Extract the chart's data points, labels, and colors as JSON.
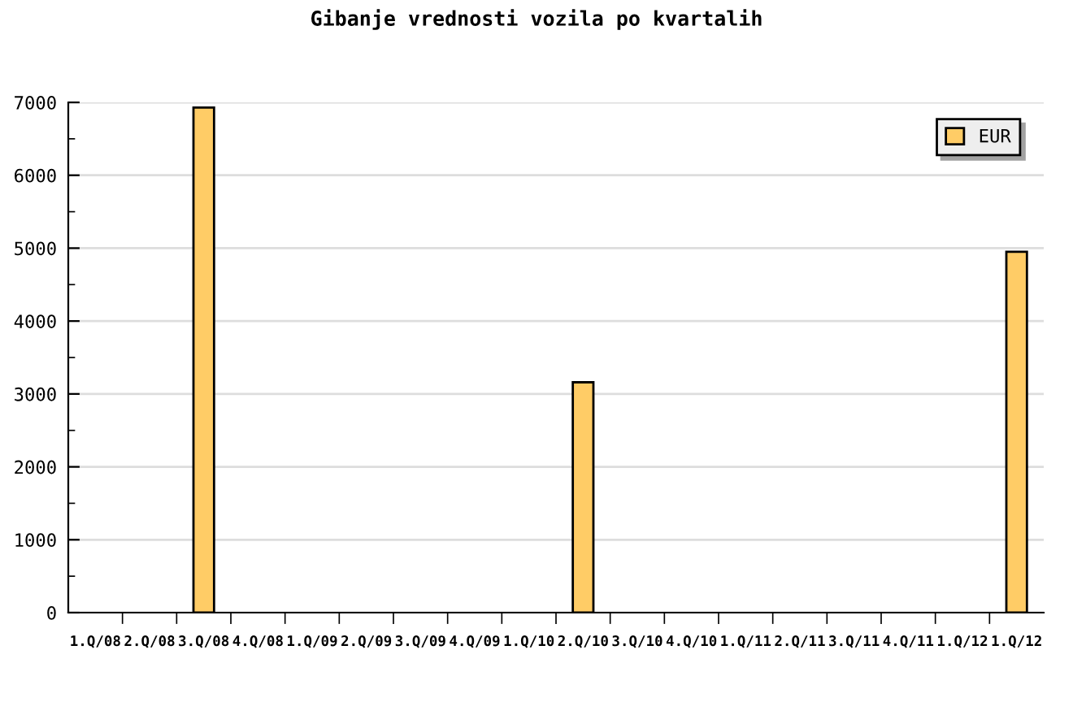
{
  "chart_data": {
    "type": "bar",
    "title": "Gibanje vrednosti vozila po kvartalih",
    "categories": [
      "1.Q/08",
      "2.Q/08",
      "3.Q/08",
      "4.Q/08",
      "1.Q/09",
      "2.Q/09",
      "3.Q/09",
      "4.Q/09",
      "1.Q/10",
      "2.Q/10",
      "3.Q/10",
      "4.Q/10",
      "1.Q/11",
      "2.Q/11",
      "3.Q/11",
      "4.Q/11",
      "1.Q/12",
      "1.Q/12"
    ],
    "series": [
      {
        "name": "EUR",
        "color": "#ffcc66",
        "values": [
          null,
          null,
          6930,
          null,
          null,
          null,
          null,
          null,
          null,
          3160,
          null,
          null,
          null,
          null,
          null,
          null,
          null,
          4950
        ]
      }
    ],
    "ylim": [
      0,
      7000
    ],
    "yticks": [
      0,
      {
        "value": 500,
        "label": null
      },
      1000,
      {
        "value": 1500,
        "label": null
      },
      2000,
      {
        "value": 2500,
        "label": null
      },
      3000,
      {
        "value": 3500,
        "label": null
      },
      4000,
      {
        "value": 4500,
        "label": null
      },
      5000,
      {
        "value": 5500,
        "label": null
      },
      6000,
      {
        "value": 6500,
        "label": null
      },
      7000
    ],
    "grid": "y",
    "legend": "top right"
  }
}
